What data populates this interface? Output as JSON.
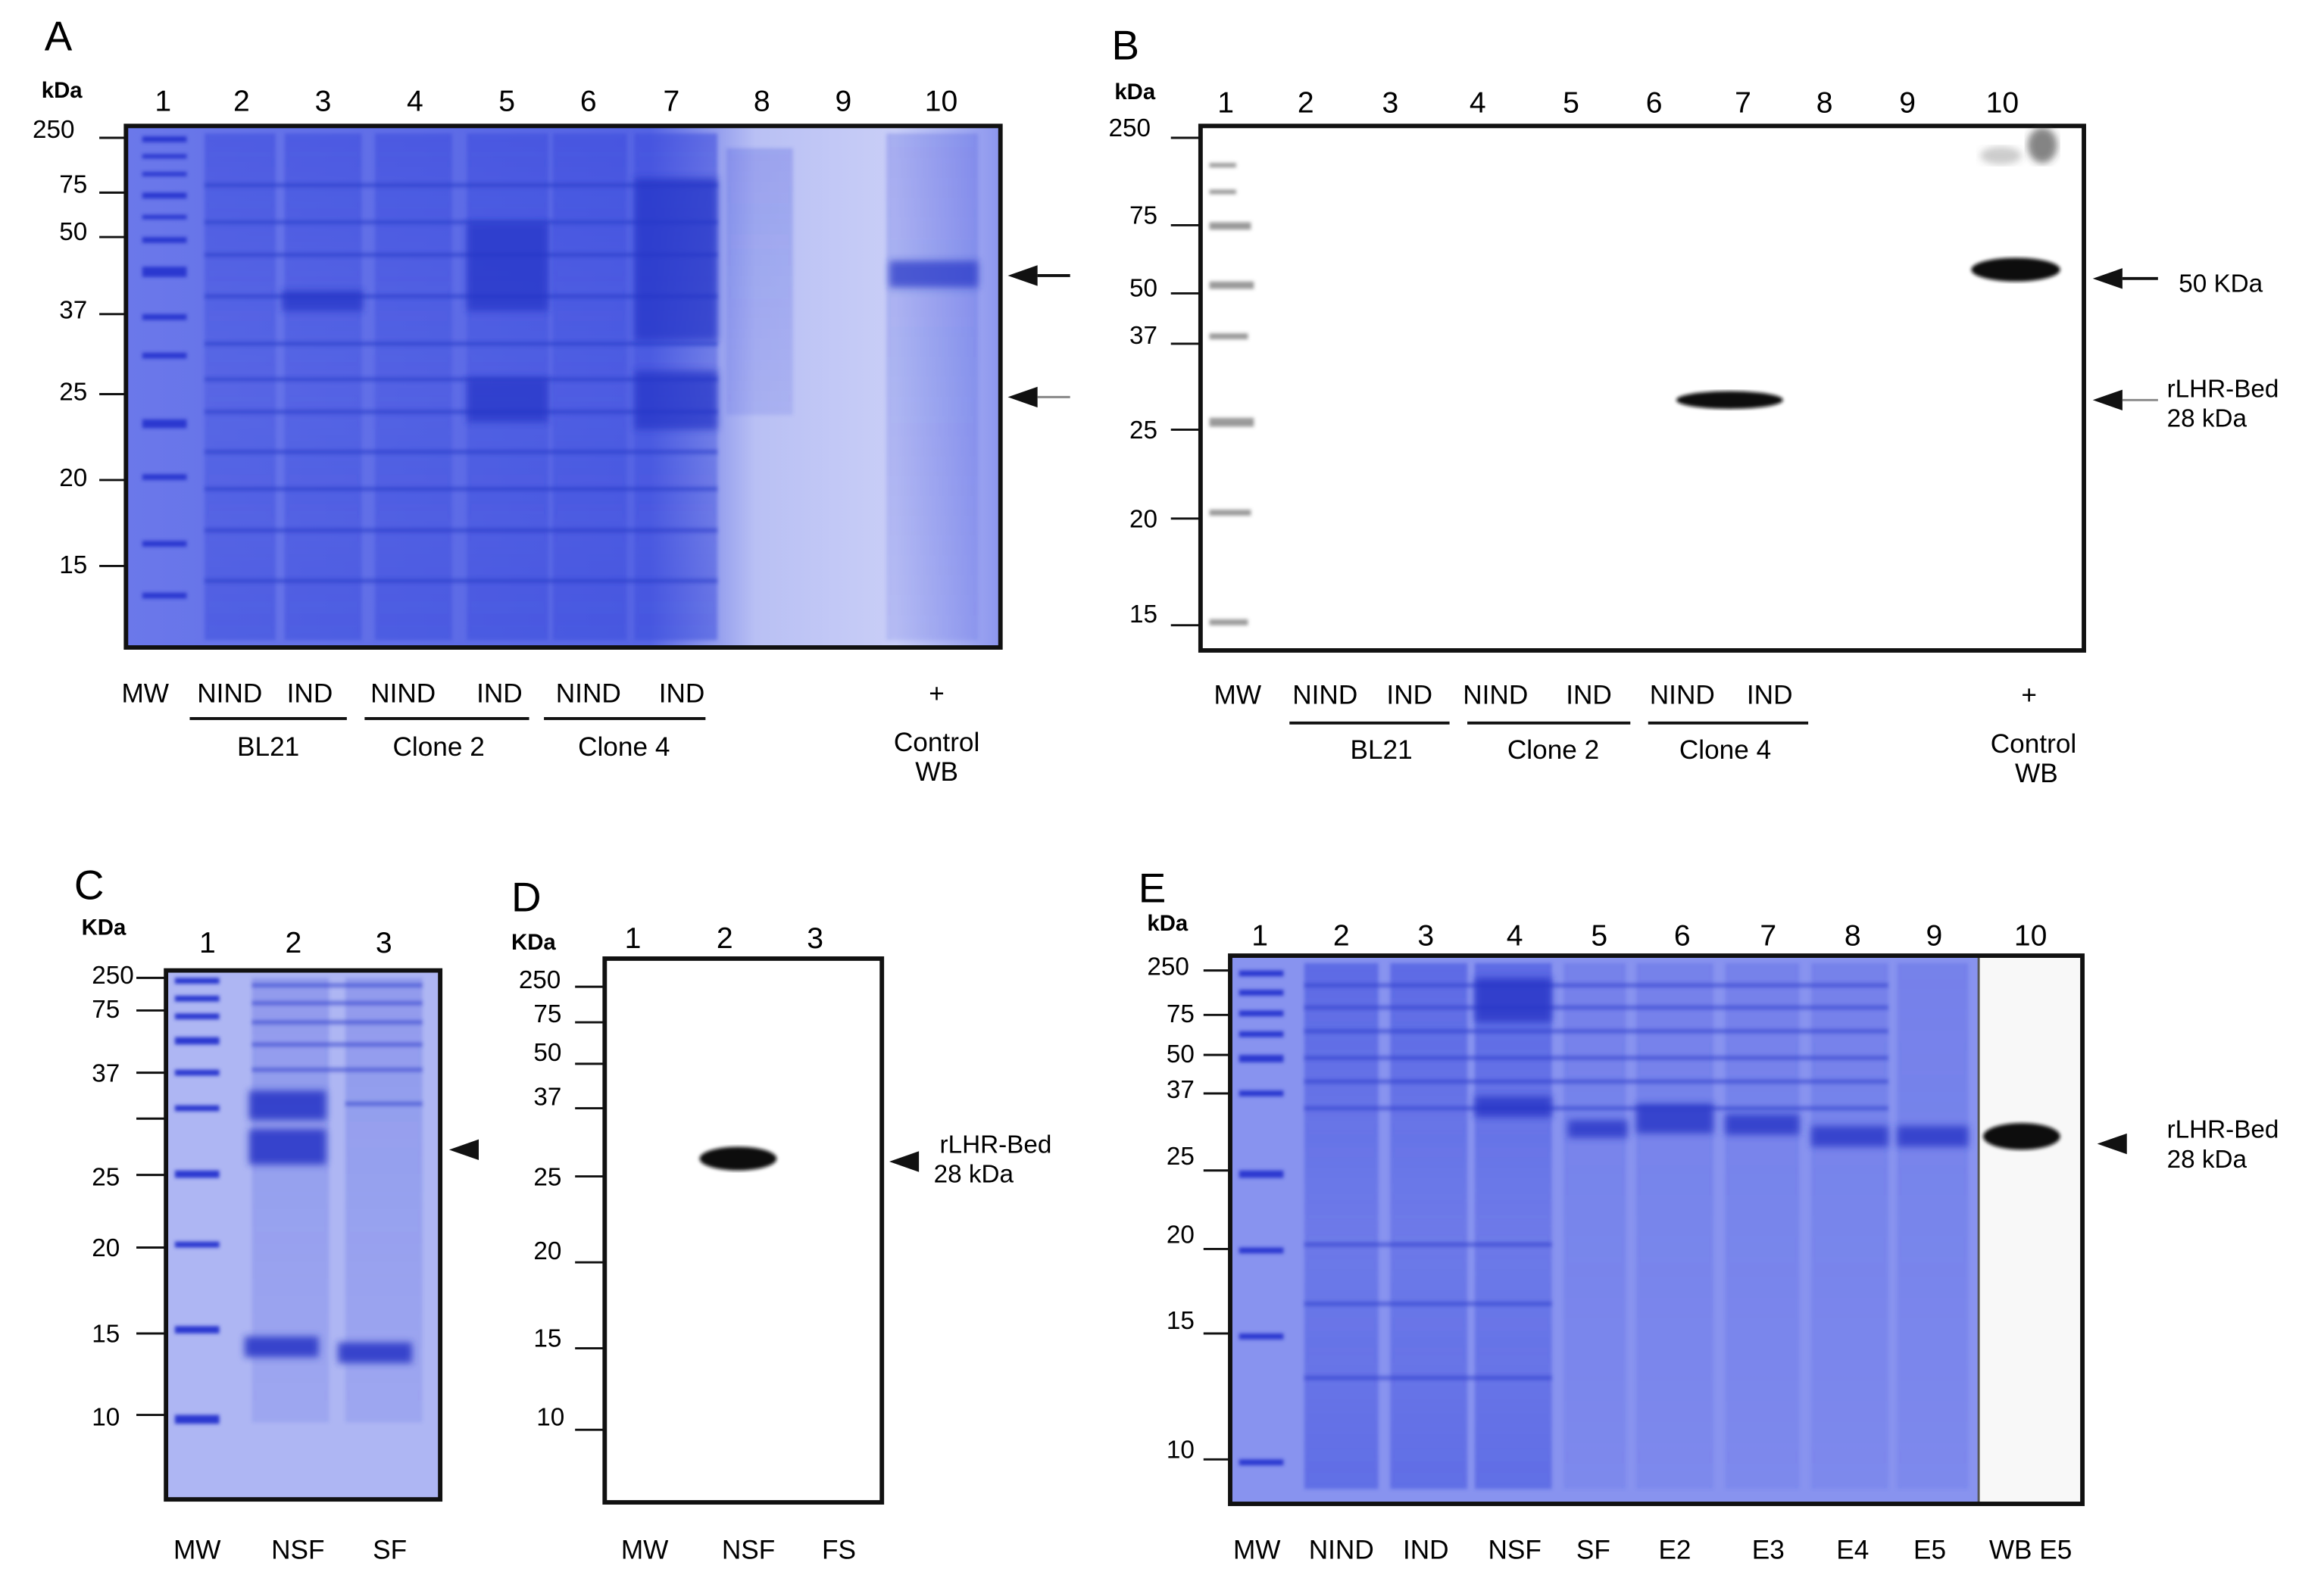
{
  "colors": {
    "gel": "#5f6ee6",
    "gel_light": "#c8cdf6",
    "band": "#3040d8",
    "blot_band": "#111111",
    "frame": "#111111"
  },
  "panels": {
    "A": {
      "letter": "A",
      "unit": "kDa",
      "lane_numbers": [
        "1",
        "2",
        "3",
        "4",
        "5",
        "6",
        "7",
        "8",
        "9",
        "10"
      ],
      "mw_markers": [
        "250",
        "75",
        "50",
        "37",
        "25",
        "20",
        "15"
      ],
      "lane_labels": [
        "MW",
        "NIND",
        "IND",
        "NIND",
        "IND",
        "NIND",
        "IND",
        "+"
      ],
      "groups": [
        "BL21",
        "Clone 2",
        "Clone 4"
      ],
      "control": "Control",
      "control2": "WB"
    },
    "B": {
      "letter": "B",
      "unit": "kDa",
      "lane_numbers": [
        "1",
        "2",
        "3",
        "4",
        "5",
        "6",
        "7",
        "8",
        "9",
        "10"
      ],
      "mw_markers": [
        "250",
        "75",
        "50",
        "37",
        "25",
        "20",
        "15"
      ],
      "lane_labels": [
        "MW",
        "NIND",
        "IND",
        "NIND",
        "IND",
        "NIND",
        "IND",
        "+"
      ],
      "groups": [
        "BL21",
        "Clone 2",
        "Clone 4"
      ],
      "control": "Control",
      "control2": "WB",
      "arrow_label_1": "50 KDa",
      "arrow_label_2a": "rLHR-Bed",
      "arrow_label_2b": "28 kDa"
    },
    "C": {
      "letter": "C",
      "unit": "KDa",
      "lane_numbers": [
        "1",
        "2",
        "3"
      ],
      "mw_markers": [
        "250",
        "75",
        "37",
        "25",
        "20",
        "15",
        "10"
      ],
      "lane_labels": [
        "MW",
        "NSF",
        "SF"
      ]
    },
    "D": {
      "letter": "D",
      "unit": "KDa",
      "lane_numbers": [
        "1",
        "2",
        "3"
      ],
      "mw_markers": [
        "250",
        "75",
        "50",
        "37",
        "25",
        "20",
        "15",
        "10"
      ],
      "lane_labels": [
        "MW",
        "NSF",
        "FS"
      ],
      "arrow_label_a": "rLHR-Bed",
      "arrow_label_b": "28 kDa"
    },
    "E": {
      "letter": "E",
      "unit": "kDa",
      "lane_numbers": [
        "1",
        "2",
        "3",
        "4",
        "5",
        "6",
        "7",
        "8",
        "9",
        "10"
      ],
      "mw_markers": [
        "250",
        "75",
        "50",
        "37",
        "25",
        "20",
        "15",
        "10"
      ],
      "lane_labels": [
        "MW",
        "NIND",
        "IND",
        "NSF",
        "SF",
        "E2",
        "E3",
        "E4",
        "E5",
        "WB E5"
      ],
      "arrow_label_a": "rLHR-Bed",
      "arrow_label_b": "28 kDa"
    }
  }
}
